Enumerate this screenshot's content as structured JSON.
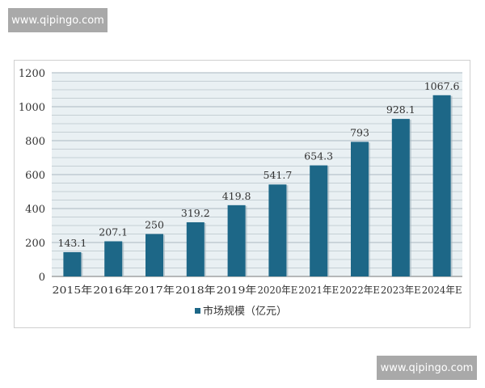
{
  "watermark_top": "www.qipingo.com",
  "watermark_bottom": "www.qipingo.com",
  "chart_data": {
    "type": "bar",
    "title": "",
    "xlabel": "",
    "ylabel": "",
    "categories": [
      "2015年",
      "2016年",
      "2017年",
      "2018年",
      "2019年",
      "2020年E",
      "2021年E",
      "2022年E",
      "2023年E",
      "2024年E"
    ],
    "series": [
      {
        "name": "市场规模（亿元）",
        "values": [
          143.1,
          207.1,
          250,
          319.2,
          419.8,
          541.7,
          654.3,
          793,
          928.1,
          1067.6
        ]
      }
    ],
    "data_labels": [
      "143.1",
      "207.1",
      "250",
      "319.2",
      "419.8",
      "541.7",
      "654.3",
      "793",
      "928.1",
      "1067.6"
    ],
    "ylim": [
      0,
      1200
    ],
    "yticks": [
      0,
      200,
      400,
      600,
      800,
      1000,
      1200
    ],
    "grid": true,
    "legend": "bottom-center",
    "colors": {
      "bar": "#1d6787",
      "plot_bg": "#e9f0f3",
      "grid": "#b8c4ca"
    }
  }
}
